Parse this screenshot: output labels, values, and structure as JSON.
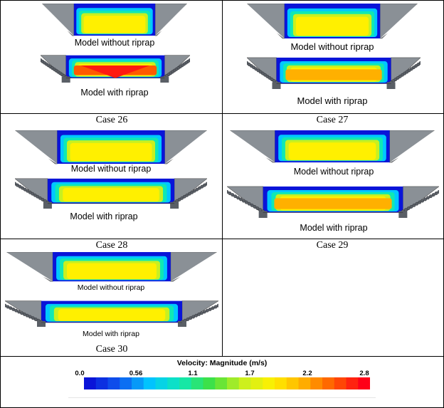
{
  "cases": [
    {
      "id": "case-25",
      "without_label": "Model without  riprap",
      "with_label": "Model with riprap",
      "caption": ""
    },
    {
      "id": "case-26",
      "without_label": "Model without  riprap",
      "with_label": "Model with riprap",
      "caption": "Case 26"
    },
    {
      "id": "case-27",
      "without_label": "Model without  riprap",
      "with_label": "Model with riprap",
      "caption": "Case 27"
    },
    {
      "id": "case-28",
      "without_label": "Model without  riprap",
      "with_label": "Model with riprap",
      "caption": "Case 28"
    },
    {
      "id": "case-29",
      "without_label": "Model without  riprap",
      "with_label": "Model with riprap",
      "caption": "Case 29"
    },
    {
      "id": "case-30",
      "without_label": "",
      "with_label": "",
      "caption": "Case 30"
    }
  ],
  "legend": {
    "title": "Velocity: Magnitude (m/s)",
    "ticks": [
      "0.0",
      "0.56",
      "1.1",
      "1.7",
      "2.2",
      "2.8"
    ],
    "min": 0.0,
    "max": 2.8,
    "bands": 24,
    "colors": [
      "#0a14d8",
      "#0f5cf0",
      "#00c8ff",
      "#10e8b4",
      "#40e040",
      "#c8f020",
      "#fff000",
      "#ffb000",
      "#ff5a00",
      "#ff0018"
    ]
  }
}
